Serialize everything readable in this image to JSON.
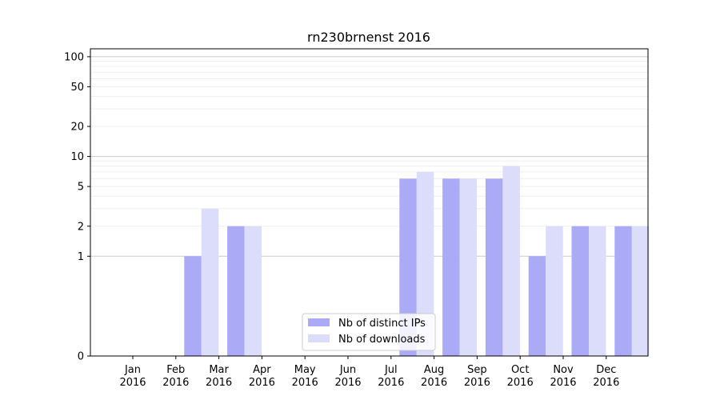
{
  "chart_data": {
    "type": "bar",
    "title": "rn230brnenst 2016",
    "xlabel": "",
    "ylabel": "",
    "yscale": "symlog",
    "ylim": [
      0,
      120
    ],
    "yticks": [
      0,
      1,
      2,
      5,
      10,
      20,
      50,
      100
    ],
    "grid": "horizontal",
    "legend_position": "lower-center",
    "categories": [
      "Jan\n2016",
      "Feb\n2016",
      "Mar\n2016",
      "Apr\n2016",
      "May\n2016",
      "Jun\n2016",
      "Jul\n2016",
      "Aug\n2016",
      "Sep\n2016",
      "Oct\n2016",
      "Nov\n2016",
      "Dec\n2016"
    ],
    "series": [
      {
        "name": "Nb of distinct IPs",
        "color": "#aaaaf7",
        "values": [
          0,
          1,
          2,
          0,
          0,
          0,
          6,
          6,
          6,
          1,
          2,
          2
        ]
      },
      {
        "name": "Nb of downloads",
        "color": "#dcdcfb",
        "values": [
          0,
          3,
          2,
          0,
          0,
          0,
          7,
          6,
          8,
          2,
          2,
          2
        ]
      }
    ]
  }
}
